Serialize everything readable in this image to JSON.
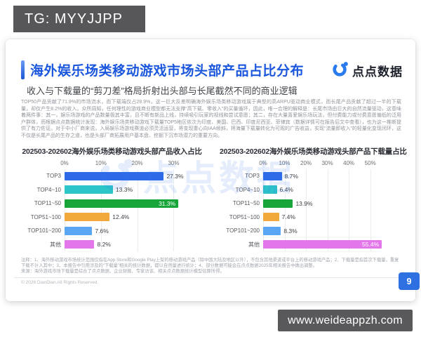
{
  "badges": {
    "tg": "TG: MYYJJPP",
    "site": "www.weideappzh.com"
  },
  "slide": {
    "title": "海外娱乐场类移动游戏市场头部产品占比分布",
    "subtitle": "收入与下载量的“剪刀差”格局折射出头部与长尾截然不同的商业逻辑",
    "logo_text": "点点数据",
    "watermark": "点点数据",
    "paragraph": "TOP50产品贡献了71.9%的市场流水，而下载端仅占28.9%，这一巨大反差明确海外娱乐场类移动游戏属于典型的高ARPU驱动商业模式，而长尾产品贡献了超过一半的下载量，却仅产生8.2%的收入。众所周知，任何理性的游戏商业模型都无法支撑“高下载、零收入”的买量循环，因此，唯一合理的解释是：长尾市场由巨大的自然流量驱动，这意味着两件事：其一，娱乐场游戏的产品数量极其丰富，且不断有新品上线，持续吸引玩家的视线和尝试意愿；其二，存在大量喜爱娱乐场玩法，但付费能力或付费意愿偏低的泛用户群体，而根据点点数据统计发现：海外娱乐场类移动游戏下载量TOP5地区依次为印度、美国、巴西、印度尼西亚、菲律宾（数据详情可在报告后文中查看），也为这一推断提供了有力佐证。对于中小厂商来说，入局娱乐场游戏赛道必须灵活运营，将变现重心向IAA倾斜，将海量下载量转化为可观的广告收益，实现“流量即收入”的轻量化变现闭环，这不仅是长尾产品的生存之道，也是头部厂商拓展用户基本盘、挖掘下沉市场潜力的重要方向。",
    "notes": [
      "注释：1、海外移动游戏市场统计范围仅指在App Store和Google Play上架的移动游戏产品（除中国大陆及地区以外），不包含其他渠道或平台上的移动游戏产品；2、下载量是指首次下载量，重复",
      "下载不计入其中；3、本报告中引用涉及的“下载量”相关的统计数据，都以自然量进行统计；4、部分数据可能会在点点数据2025年相关报告中做出调整。",
      "来源：海外游戏市场下载量是综合了点点数据、企业财报、专家访谈、相关点点数据统计模型估算所得。"
    ],
    "copyright": "© 2026 DianDian.All Rights Reserved.",
    "page_number": "9"
  },
  "colors": {
    "accent_blue": "#1b57dd",
    "badge_gray": "#58585a",
    "bar_palette": [
      "#2e6ae8",
      "#2cc5c8",
      "#17a53a",
      "#f2a93b",
      "#5aa6f2",
      "#e476ec"
    ]
  },
  "chart_data": [
    {
      "type": "bar",
      "orientation": "horizontal",
      "title": "202503-202602海外娱乐场类移动游戏头部产品收入占比",
      "categories": [
        "TOP3",
        "TOP4~10",
        "TOP11~50",
        "TOP51~100",
        "TOP101~200",
        "其他"
      ],
      "values": [
        27.3,
        13.3,
        31.3,
        12.4,
        7.6,
        8.2
      ],
      "labels": [
        "27.3%",
        "13.3%",
        "31.3%",
        "12.4%",
        "7.6%",
        "8.2%"
      ],
      "bar_colors": [
        "#2e6ae8",
        "#2cc5c8",
        "#17a53a",
        "#f2a93b",
        "#5aa6f2",
        "#e476ec"
      ],
      "xlabel": "",
      "ylabel": "",
      "xlim": [
        0,
        33
      ],
      "ticks": [
        0,
        10,
        20,
        30
      ],
      "tick_labels": [
        "0%",
        "10%",
        "20%",
        "30%"
      ],
      "grid": true,
      "legend": false
    },
    {
      "type": "bar",
      "orientation": "horizontal",
      "title": "202503-202602海外娱乐场类移动游戏头部产品下载量占比",
      "categories": [
        "TOP3",
        "TOP4~10",
        "TOP11~50",
        "TOP51~100",
        "TOP101~200",
        "其他"
      ],
      "values": [
        8.7,
        6.4,
        13.9,
        7.4,
        8.3,
        55.4
      ],
      "labels": [
        "8.7%",
        "6.4%",
        "13.9%",
        "7.4%",
        "8.3%",
        "55.4%"
      ],
      "bar_colors": [
        "#2e6ae8",
        "#2cc5c8",
        "#17a53a",
        "#f2a93b",
        "#5aa6f2",
        "#e476ec"
      ],
      "xlabel": "",
      "ylabel": "",
      "xlim": [
        0,
        56
      ],
      "ticks": [
        0,
        10,
        20,
        30,
        40,
        50
      ],
      "tick_labels": [
        "0%",
        "10%",
        "20%",
        "30%",
        "40%",
        "50%"
      ],
      "grid": true,
      "legend": false
    }
  ]
}
